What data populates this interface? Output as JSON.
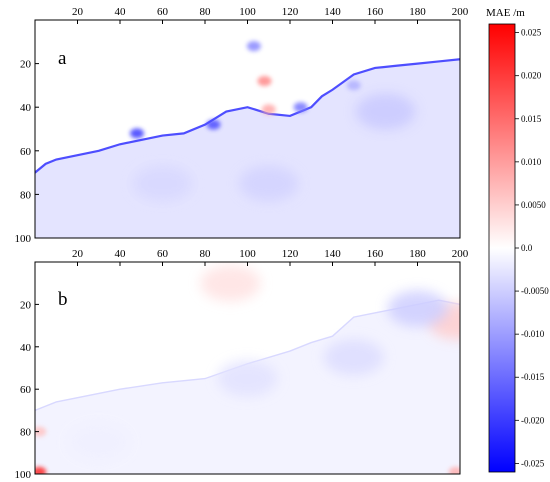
{
  "chart_data": [
    {
      "type": "heatmap",
      "panel_label": "a",
      "x_ticks": [
        20,
        40,
        60,
        80,
        100,
        120,
        140,
        160,
        180,
        200
      ],
      "y_ticks": [
        20,
        40,
        60,
        80,
        100
      ],
      "xlim": [
        0,
        200
      ],
      "ylim": [
        0,
        100
      ],
      "x_tick_position": "top",
      "y_axis_inverted": true,
      "surface_profile": [
        [
          0,
          70
        ],
        [
          5,
          66
        ],
        [
          10,
          64
        ],
        [
          20,
          62
        ],
        [
          30,
          60
        ],
        [
          40,
          57
        ],
        [
          50,
          55
        ],
        [
          60,
          53
        ],
        [
          70,
          52
        ],
        [
          80,
          48
        ],
        [
          90,
          42
        ],
        [
          100,
          40
        ],
        [
          110,
          43
        ],
        [
          120,
          44
        ],
        [
          130,
          40
        ],
        [
          135,
          35
        ],
        [
          140,
          32
        ],
        [
          150,
          25
        ],
        [
          160,
          22
        ],
        [
          170,
          21
        ],
        [
          180,
          20
        ],
        [
          190,
          19
        ],
        [
          200,
          18
        ]
      ],
      "notable_errors": [
        {
          "x": 108,
          "y": 28,
          "value": 0.012
        },
        {
          "x": 110,
          "y": 41,
          "value": 0.009
        },
        {
          "x": 103,
          "y": 12,
          "value": -0.012
        },
        {
          "x": 84,
          "y": 48,
          "value": -0.018
        },
        {
          "x": 48,
          "y": 52,
          "value": -0.02
        },
        {
          "x": 125,
          "y": 40,
          "value": -0.014
        },
        {
          "x": 150,
          "y": 30,
          "value": -0.008
        },
        {
          "x": 110,
          "y": 75,
          "value": -0.0045
        },
        {
          "x": 60,
          "y": 75,
          "value": -0.004
        },
        {
          "x": 165,
          "y": 42,
          "value": -0.0055
        }
      ]
    },
    {
      "type": "heatmap",
      "panel_label": "b",
      "x_ticks": [
        20,
        40,
        60,
        80,
        100,
        120,
        140,
        160,
        180,
        200
      ],
      "y_ticks": [
        20,
        40,
        60,
        80,
        100
      ],
      "xlim": [
        0,
        200
      ],
      "ylim": [
        0,
        100
      ],
      "x_tick_position": "top",
      "y_axis_inverted": true,
      "surface_profile": [
        [
          0,
          70
        ],
        [
          10,
          66
        ],
        [
          20,
          64
        ],
        [
          40,
          60
        ],
        [
          60,
          57
        ],
        [
          80,
          55
        ],
        [
          100,
          48
        ],
        [
          120,
          42
        ],
        [
          130,
          38
        ],
        [
          140,
          35
        ],
        [
          150,
          26
        ],
        [
          170,
          22
        ],
        [
          190,
          18
        ],
        [
          200,
          20
        ]
      ],
      "notable_errors": [
        {
          "x": 2,
          "y": 99,
          "value": 0.022
        },
        {
          "x": 198,
          "y": 99,
          "value": 0.008
        },
        {
          "x": 2,
          "y": 80,
          "value": 0.006
        },
        {
          "x": 199,
          "y": 28,
          "value": 0.005
        },
        {
          "x": 92,
          "y": 10,
          "value": 0.003
        },
        {
          "x": 180,
          "y": 22,
          "value": -0.005
        },
        {
          "x": 150,
          "y": 45,
          "value": -0.0035
        },
        {
          "x": 100,
          "y": 55,
          "value": -0.003
        },
        {
          "x": 30,
          "y": 85,
          "value": -0.0015
        }
      ]
    }
  ],
  "colorbar": {
    "title": "MAE /m",
    "range": [
      -0.026,
      0.026
    ],
    "ticks": [
      {
        "value": 0.025,
        "label": "0.025"
      },
      {
        "value": 0.02,
        "label": "0.020"
      },
      {
        "value": 0.015,
        "label": "0.015"
      },
      {
        "value": 0.01,
        "label": "0.010"
      },
      {
        "value": 0.005,
        "label": "0.0050"
      },
      {
        "value": 0.0,
        "label": "0.0"
      },
      {
        "value": -0.005,
        "label": "-0.0050"
      },
      {
        "value": -0.01,
        "label": "-0.010"
      },
      {
        "value": -0.015,
        "label": "-0.015"
      },
      {
        "value": -0.02,
        "label": "-0.020"
      },
      {
        "value": -0.025,
        "label": "-0.025"
      }
    ],
    "colors": {
      "max": "#ff0000",
      "mid": "#ffffff",
      "min": "#0000ff"
    }
  }
}
